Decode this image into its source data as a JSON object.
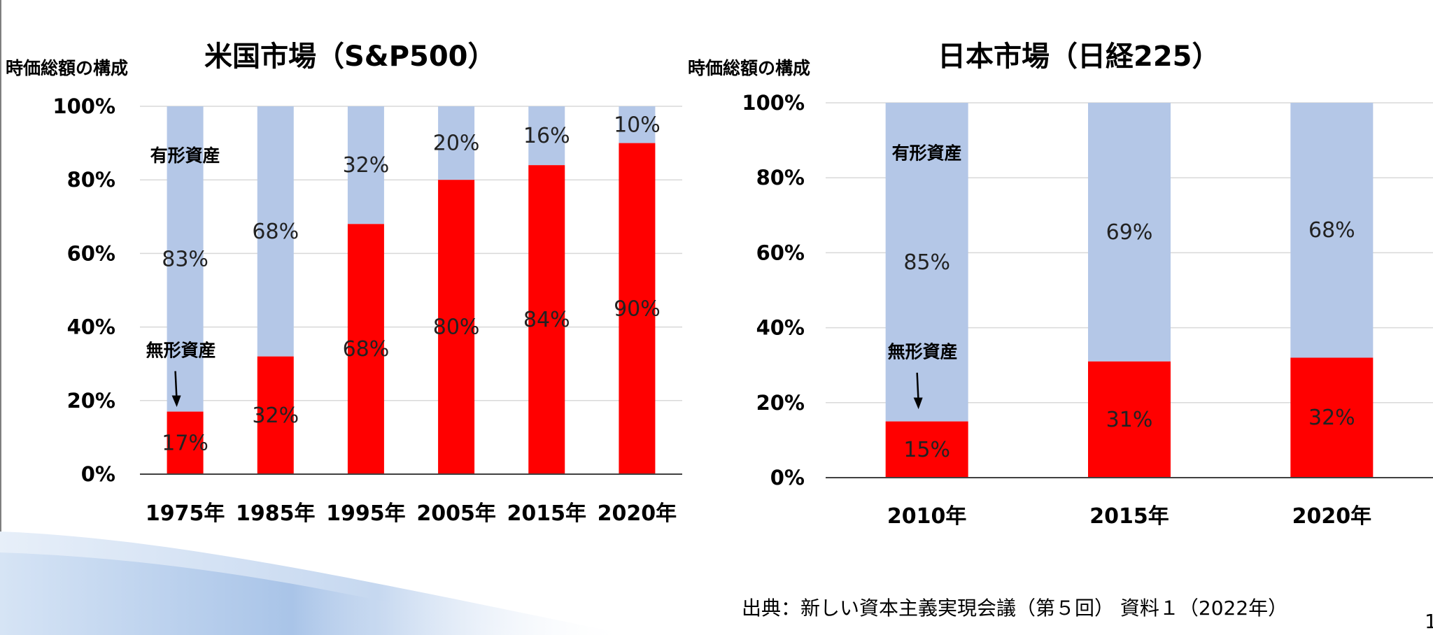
{
  "page": {
    "source": "出典：新しい資本主義実現会議（第５回） 資料１（2022年）",
    "page_number": "1"
  },
  "colors": {
    "tangible": "#b4c7e7",
    "intangible": "#ff0000",
    "gridline": "#d9d9d9",
    "axis": "#404040"
  },
  "chart_data": [
    {
      "type": "bar",
      "stacked": true,
      "title": "米国市場（S&P500）",
      "ylabel": "時価総額の構成",
      "categories": [
        "1975年",
        "1985年",
        "1995年",
        "2005年",
        "2015年",
        "2020年"
      ],
      "series": [
        {
          "name": "無形資産",
          "values": [
            17,
            32,
            68,
            80,
            84,
            90
          ],
          "labels": [
            "17%",
            "32%",
            "68%",
            "80%",
            "84%",
            "90%"
          ],
          "color": "#ff0000"
        },
        {
          "name": "有形資産",
          "values": [
            83,
            68,
            32,
            20,
            16,
            10
          ],
          "labels": [
            "83%",
            "68%",
            "32%",
            "20%",
            "16%",
            "10%"
          ],
          "color": "#b4c7e7"
        }
      ],
      "ylim": [
        0,
        100
      ],
      "yticks": [
        "0%",
        "20%",
        "40%",
        "60%",
        "80%",
        "100%"
      ],
      "grid": true,
      "annotations": {
        "tangible": "有形資産",
        "intangible": "無形資産"
      }
    },
    {
      "type": "bar",
      "stacked": true,
      "title": "日本市場（日経225）",
      "ylabel": "時価総額の構成",
      "categories": [
        "2010年",
        "2015年",
        "2020年"
      ],
      "series": [
        {
          "name": "無形資産",
          "values": [
            15,
            31,
            32
          ],
          "labels": [
            "15%",
            "31%",
            "32%"
          ],
          "color": "#ff0000"
        },
        {
          "name": "有形資産",
          "values": [
            85,
            69,
            68
          ],
          "labels": [
            "85%",
            "69%",
            "68%"
          ],
          "color": "#b4c7e7"
        }
      ],
      "ylim": [
        0,
        100
      ],
      "yticks": [
        "0%",
        "20%",
        "40%",
        "60%",
        "80%",
        "100%"
      ],
      "grid": true,
      "annotations": {
        "tangible": "有形資産",
        "intangible": "無形資産"
      }
    }
  ]
}
